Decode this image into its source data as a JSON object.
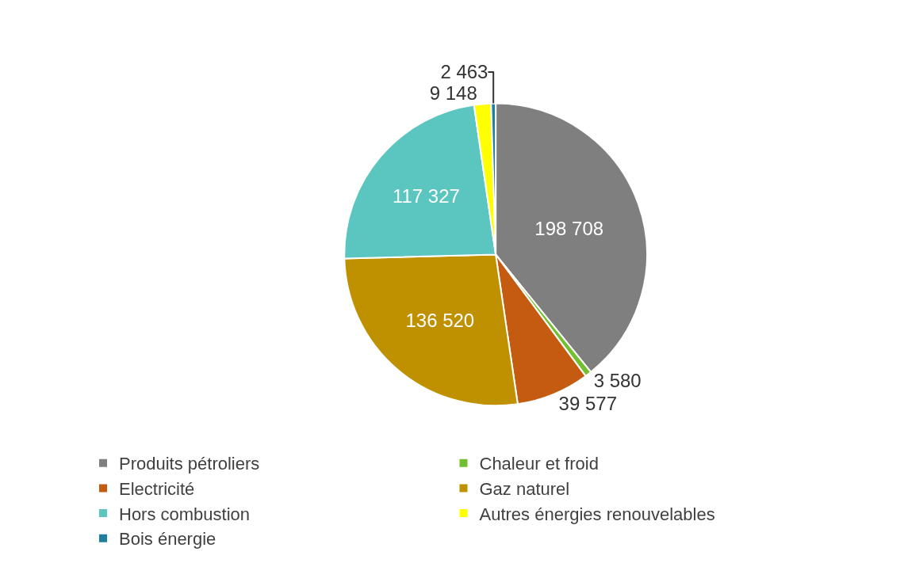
{
  "chart_data": {
    "type": "pie",
    "categories": [
      "Produits pétroliers",
      "Chaleur et froid",
      "Electricité",
      "Gaz naturel",
      "Hors combustion",
      "Autres énergies renouvelables",
      "Bois énergie"
    ],
    "values": [
      198708,
      3580,
      39577,
      136520,
      117327,
      9148,
      2463
    ],
    "value_labels": [
      "198 708",
      "3 580",
      "39 577",
      "136 520",
      "117 327",
      "9 148",
      "2 463"
    ],
    "colors": [
      "#7f7f7f",
      "#70c030",
      "#c55a11",
      "#bf9000",
      "#5bc5c0",
      "#ffff00",
      "#1f7f9f"
    ],
    "legend": "bottom left"
  }
}
